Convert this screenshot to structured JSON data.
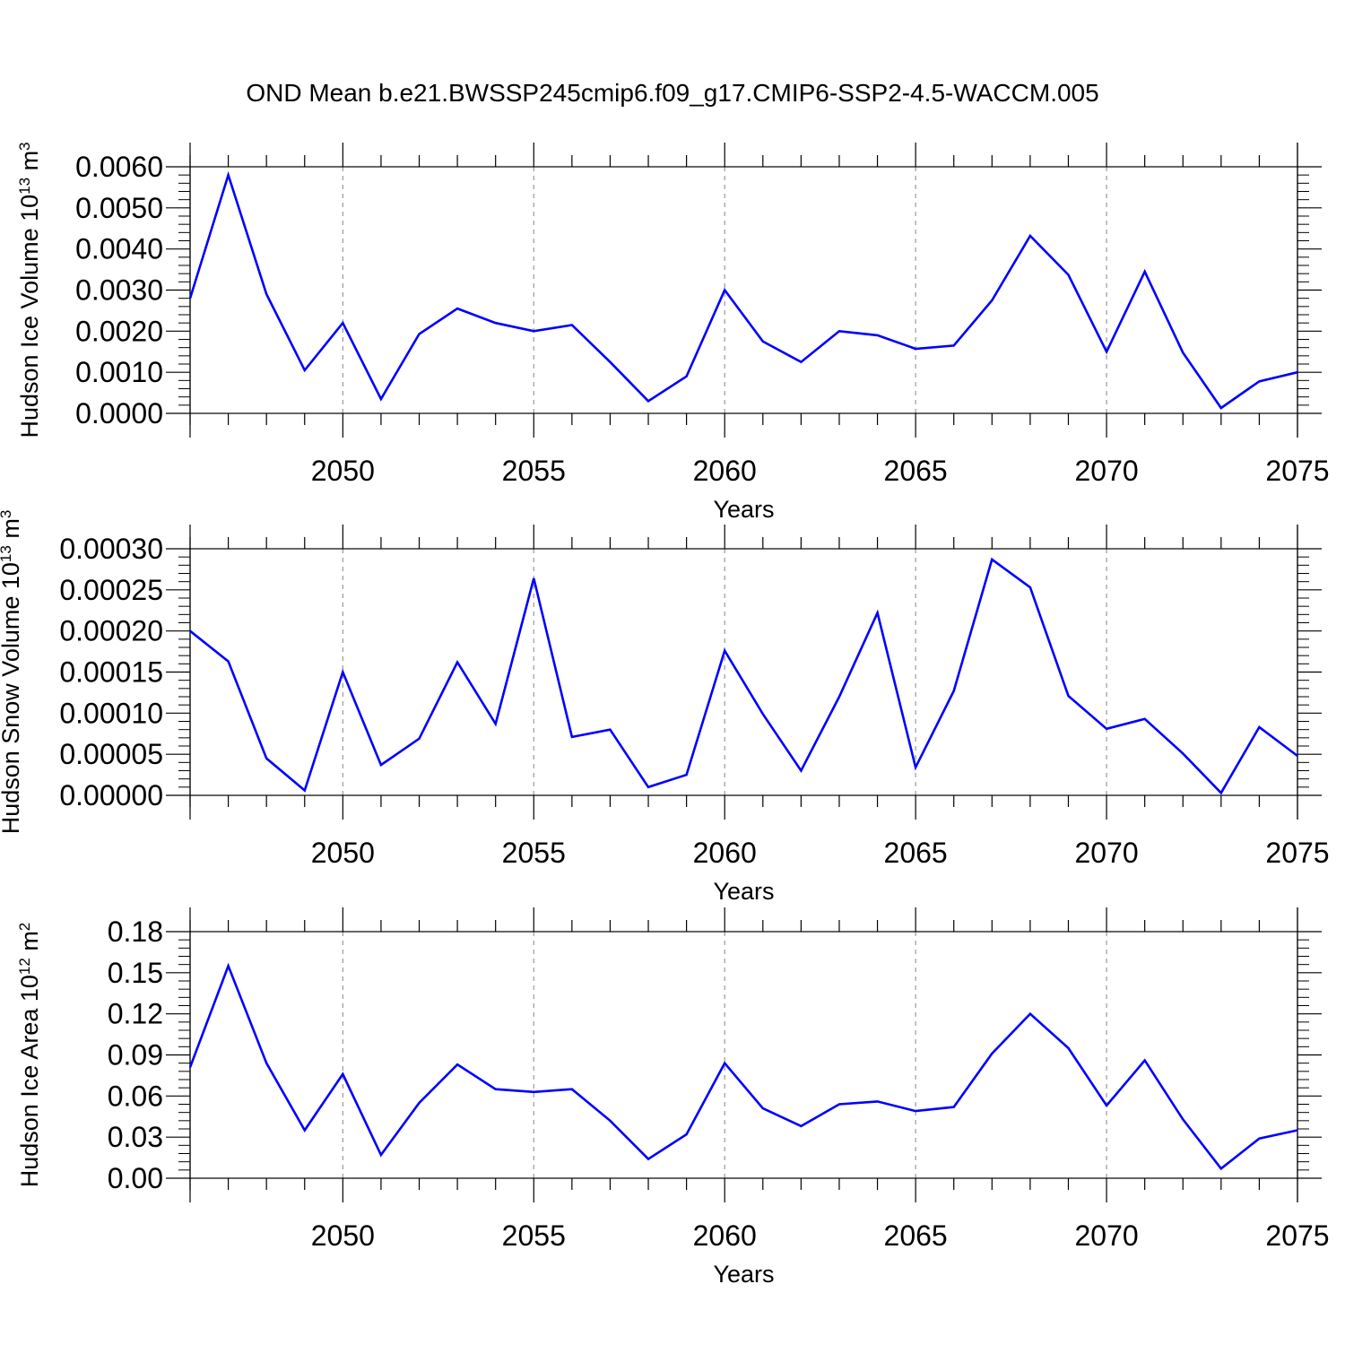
{
  "title": "OND Mean b.e21.BWSSP245cmip6.f09_g17.CMIP6-SSP2-4.5-WACCM.005",
  "line_color": "#0000ff",
  "chart_data": [
    {
      "type": "line",
      "ylabel": {
        "text": "Hudson Ice Volume 10",
        "exp": "13",
        "unit": " m",
        "unit_exp": "3"
      },
      "xlabel": "Years",
      "xlim": [
        2046,
        2075
      ],
      "ylim": [
        0.0,
        0.006
      ],
      "x_ticks": [
        2050,
        2055,
        2060,
        2065,
        2070,
        2075
      ],
      "y_ticks": [
        "0.0000",
        "0.0010",
        "0.0020",
        "0.0030",
        "0.0040",
        "0.0050",
        "0.0060"
      ],
      "x": [
        2046,
        2047,
        2048,
        2049,
        2050,
        2051,
        2052,
        2053,
        2054,
        2055,
        2056,
        2057,
        2058,
        2059,
        2060,
        2061,
        2062,
        2063,
        2064,
        2065,
        2066,
        2067,
        2068,
        2069,
        2070,
        2071,
        2072,
        2073,
        2074,
        2075
      ],
      "values": [
        0.0028,
        0.0058,
        0.0029,
        0.00105,
        0.0022,
        0.00035,
        0.00193,
        0.00255,
        0.0022,
        0.002,
        0.00215,
        0.00125,
        0.0003,
        0.0009,
        0.003,
        0.00175,
        0.00125,
        0.002,
        0.0019,
        0.00157,
        0.00165,
        0.00275,
        0.00432,
        0.00337,
        0.0015,
        0.00345,
        0.00148,
        0.00013,
        0.00078,
        0.001
      ]
    },
    {
      "type": "line",
      "ylabel": {
        "text": "Hudson Snow Volume 10",
        "exp": "13",
        "unit": " m",
        "unit_exp": "3"
      },
      "xlabel": "Years",
      "xlim": [
        2046,
        2075
      ],
      "ylim": [
        0.0,
        0.0003
      ],
      "x_ticks": [
        2050,
        2055,
        2060,
        2065,
        2070,
        2075
      ],
      "y_ticks": [
        "0.00000",
        "0.00005",
        "0.00010",
        "0.00015",
        "0.00020",
        "0.00025",
        "0.00030"
      ],
      "x": [
        2046,
        2047,
        2048,
        2049,
        2050,
        2051,
        2052,
        2053,
        2054,
        2055,
        2056,
        2057,
        2058,
        2059,
        2060,
        2061,
        2062,
        2063,
        2064,
        2065,
        2066,
        2067,
        2068,
        2069,
        2070,
        2071,
        2072,
        2073,
        2074,
        2075
      ],
      "values": [
        0.0002,
        0.000163,
        4.5e-05,
        6e-06,
        0.00015,
        3.7e-05,
        6.9e-05,
        0.000162,
        8.7e-05,
        0.000264,
        7.1e-05,
        8e-05,
        1e-05,
        2.5e-05,
        0.000176,
        9.9e-05,
        3e-05,
        0.00012,
        0.000222,
        3.4e-05,
        0.000127,
        0.000287,
        0.000253,
        0.000121,
        8.1e-05,
        9.3e-05,
        5.1e-05,
        3e-06,
        8.3e-05,
        4.8e-05
      ]
    },
    {
      "type": "line",
      "ylabel": {
        "text": "Hudson Ice Area 10",
        "exp": "12",
        "unit": " m",
        "unit_exp": "2"
      },
      "xlabel": "Years",
      "xlim": [
        2046,
        2075
      ],
      "ylim": [
        0.0,
        0.18
      ],
      "x_ticks": [
        2050,
        2055,
        2060,
        2065,
        2070,
        2075
      ],
      "y_ticks": [
        "0.00",
        "0.03",
        "0.06",
        "0.09",
        "0.12",
        "0.15",
        "0.18"
      ],
      "x": [
        2046,
        2047,
        2048,
        2049,
        2050,
        2051,
        2052,
        2053,
        2054,
        2055,
        2056,
        2057,
        2058,
        2059,
        2060,
        2061,
        2062,
        2063,
        2064,
        2065,
        2066,
        2067,
        2068,
        2069,
        2070,
        2071,
        2072,
        2073,
        2074,
        2075
      ],
      "values": [
        0.081,
        0.155,
        0.084,
        0.035,
        0.076,
        0.017,
        0.055,
        0.083,
        0.065,
        0.063,
        0.065,
        0.042,
        0.014,
        0.032,
        0.084,
        0.051,
        0.038,
        0.054,
        0.056,
        0.049,
        0.052,
        0.091,
        0.12,
        0.095,
        0.053,
        0.086,
        0.043,
        0.007,
        0.029,
        0.035
      ]
    }
  ]
}
